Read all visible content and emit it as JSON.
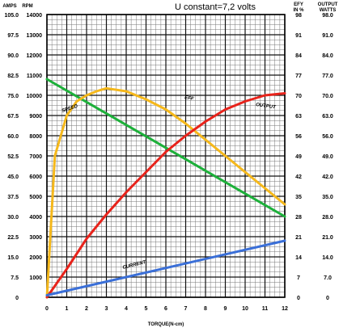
{
  "chart_data": {
    "type": "line",
    "title": "U constant=7,2 volts",
    "xlabel": "TORQUE(N-cm)",
    "x_ticks": [
      "0",
      "1",
      "2",
      "3",
      "4",
      "5",
      "6",
      "7",
      "8",
      "9",
      "10",
      "11",
      "12"
    ],
    "xlim": [
      0,
      12
    ],
    "ylim": [
      0,
      14
    ],
    "left_axes": {
      "amps_header": "AMPS",
      "rpm_header": "RPM",
      "amps_ticks": [
        "0",
        "7.5",
        "15.0",
        "22.5",
        "30.0",
        "37.5",
        "45.0",
        "52.5",
        "60.0",
        "67.5",
        "75.0",
        "82.5",
        "90.0",
        "97.5",
        "105.0"
      ],
      "rpm_ticks": [
        "",
        "1000",
        "2000",
        "3000",
        "4000",
        "5000",
        "6000",
        "7000",
        "8000",
        "9000",
        "10000",
        "11000",
        "12000",
        "13000",
        "14000"
      ]
    },
    "right_axes": {
      "eff_header": "EFY",
      "eff_header2": "IN %",
      "out_header": "OUTPUT",
      "out_header2": "WATTS",
      "eff_ticks": [
        "0",
        "7",
        "14",
        "21",
        "28",
        "35",
        "42",
        "49",
        "56",
        "63",
        "70",
        "77",
        "84",
        "91",
        "98"
      ],
      "out_ticks": [
        "0",
        "7.0",
        "14.0",
        "21.0",
        "28.0",
        "35.0",
        "42.0",
        "49.0",
        "56.0",
        "63.0",
        "70.0",
        "77.0",
        "84.0",
        "91.0",
        "98.0"
      ]
    },
    "grid": true,
    "series": [
      {
        "name": "SPEED",
        "color": "#1db03a",
        "x": [
          0,
          12
        ],
        "y": [
          10.8,
          4.0
        ]
      },
      {
        "name": "EFF",
        "color": "#f5b81b",
        "x": [
          0,
          0.4,
          1,
          1.5,
          2,
          2.5,
          3,
          4,
          5,
          6,
          7,
          8,
          9,
          10,
          11,
          12
        ],
        "y": [
          0,
          7.0,
          9.0,
          9.7,
          10.0,
          10.2,
          10.35,
          10.2,
          9.8,
          9.3,
          8.6,
          7.8,
          7.0,
          6.2,
          5.4,
          4.6
        ]
      },
      {
        "name": "OUTPUT",
        "color": "#e8231b",
        "x": [
          0,
          1,
          2,
          3,
          4,
          5,
          6,
          7,
          8,
          9,
          10,
          11,
          12
        ],
        "y": [
          0,
          1.4,
          2.9,
          4.1,
          5.2,
          6.2,
          7.2,
          8.0,
          8.7,
          9.3,
          9.7,
          10.0,
          10.1
        ]
      },
      {
        "name": "CURRENT",
        "color": "#3a6fd8",
        "x": [
          0,
          12
        ],
        "y": [
          0.1,
          2.8
        ]
      }
    ]
  }
}
